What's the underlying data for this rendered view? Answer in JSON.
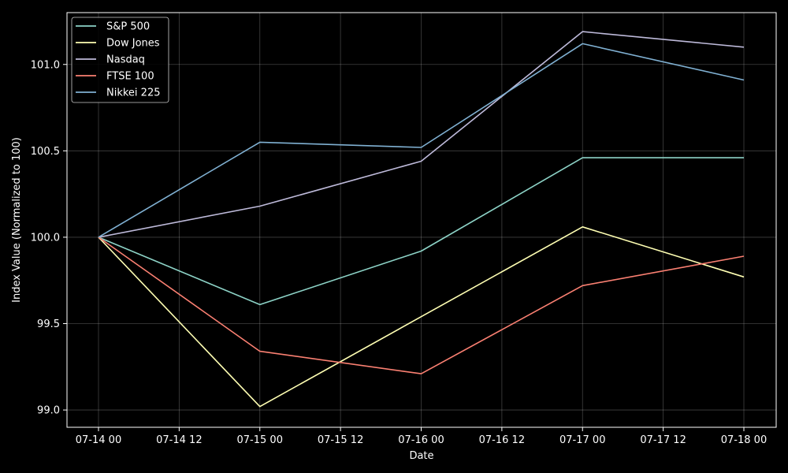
{
  "chart_data": {
    "type": "line",
    "title": "",
    "xlabel": "Date",
    "ylabel": "Index Value (Normalized to 100)",
    "x": [
      "2024-07-14",
      "2024-07-15",
      "2024-07-16",
      "2024-07-17",
      "2024-07-18"
    ],
    "x_ticks": [
      "07-14 00",
      "07-14 12",
      "07-15 00",
      "07-15 12",
      "07-16 00",
      "07-16 12",
      "07-17 00",
      "07-17 12",
      "07-18 00"
    ],
    "y_ticks": [
      "99.0",
      "99.5",
      "100.0",
      "100.5",
      "101.0"
    ],
    "ylim": [
      98.9,
      101.3
    ],
    "grid": true,
    "legend_position": "top-left",
    "series": [
      {
        "name": "S&P 500",
        "color": "#8dd3c7",
        "values": [
          100.0,
          99.61,
          99.92,
          100.46,
          100.46
        ]
      },
      {
        "name": "Dow Jones",
        "color": "#ffffb3",
        "values": [
          100.0,
          99.02,
          99.54,
          100.06,
          99.77
        ]
      },
      {
        "name": "Nasdaq",
        "color": "#bebada",
        "values": [
          100.0,
          100.18,
          100.44,
          101.19,
          101.1
        ]
      },
      {
        "name": "FTSE 100",
        "color": "#fb8072",
        "values": [
          100.0,
          99.34,
          99.21,
          99.72,
          99.89
        ]
      },
      {
        "name": "Nikkei 225",
        "color": "#80b1d3",
        "values": [
          100.0,
          100.55,
          100.52,
          101.12,
          100.91
        ]
      }
    ]
  }
}
